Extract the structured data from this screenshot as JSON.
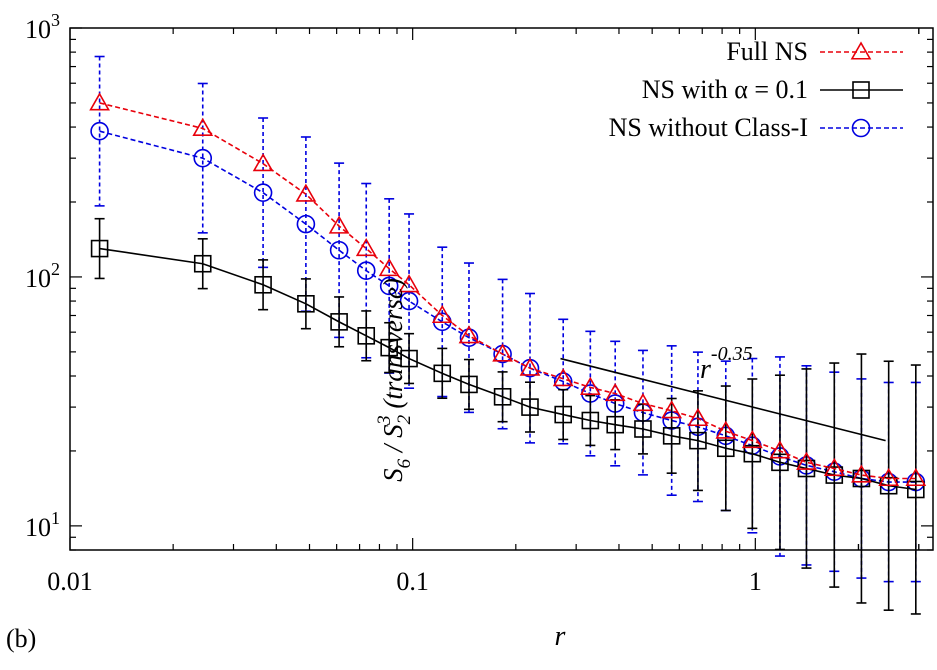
{
  "panel_label": "(b)",
  "chart_data": {
    "type": "line",
    "xlabel": "r",
    "ylabel": {
      "s6": "S",
      "s6_sub": "6",
      "slash": " / ",
      "s2": "S",
      "s2_sub": "2",
      "s2_sup": "3",
      "suffix": " (transverse)"
    },
    "xscale": "log",
    "yscale": "log",
    "xlim": [
      0.01,
      3.3
    ],
    "ylim": [
      8,
      1000
    ],
    "x_ticks": [
      {
        "value": 0.01,
        "label": "0.01"
      },
      {
        "value": 0.1,
        "label": "0.1"
      },
      {
        "value": 1,
        "label": "1"
      }
    ],
    "y_ticks": [
      {
        "value": 10,
        "base": "10",
        "exp": "1"
      },
      {
        "value": 100,
        "base": "10",
        "exp": "2"
      },
      {
        "value": 1000,
        "base": "10",
        "exp": "3"
      }
    ],
    "legend_position": "top-right",
    "series": [
      {
        "name": "Full NS",
        "color": "#e8000b",
        "marker": "triangle",
        "dash": "dashed",
        "x": [
          0.0122,
          0.0244,
          0.0366,
          0.0488,
          0.061,
          0.0732,
          0.0854,
          0.0976,
          0.122,
          0.146,
          0.183,
          0.22,
          0.275,
          0.33,
          0.39,
          0.47,
          0.57,
          0.68,
          0.82,
          0.98,
          1.18,
          1.41,
          1.7,
          2.04,
          2.45,
          2.94
        ],
        "y": [
          500,
          395,
          285,
          215,
          160,
          130,
          108,
          93,
          70,
          58,
          49,
          43,
          39,
          36,
          34,
          31,
          29,
          27,
          24,
          22,
          20,
          18,
          17,
          16,
          15.5,
          15.5
        ]
      },
      {
        "name": "NS with α = 0.1",
        "color": "#000000",
        "marker": "square",
        "dash": "solid",
        "x": [
          0.0122,
          0.0244,
          0.0366,
          0.0488,
          0.061,
          0.0732,
          0.0854,
          0.0976,
          0.122,
          0.146,
          0.183,
          0.22,
          0.275,
          0.33,
          0.39,
          0.47,
          0.57,
          0.68,
          0.82,
          0.98,
          1.18,
          1.41,
          1.7,
          2.04,
          2.45,
          2.94
        ],
        "y": [
          130,
          113,
          93,
          78,
          66,
          58,
          52,
          47,
          41,
          37,
          33,
          30,
          28,
          26.5,
          25.5,
          24.5,
          23,
          22,
          20.5,
          19.5,
          18,
          17,
          16,
          15.5,
          14.5,
          14
        ],
        "err": [
          0.12,
          0.1,
          0.1,
          0.1,
          0.1,
          0.1,
          0.1,
          0.1,
          0.1,
          0.1,
          0.1,
          0.1,
          0.1,
          0.1,
          0.1,
          0.1,
          0.15,
          0.2,
          0.25,
          0.3,
          0.35,
          0.4,
          0.45,
          0.5,
          0.5,
          0.5
        ]
      },
      {
        "name": "NS without Class-I",
        "color": "#0000e0",
        "marker": "circle",
        "dash": "dashed",
        "x": [
          0.0122,
          0.0244,
          0.0366,
          0.0488,
          0.061,
          0.0732,
          0.0854,
          0.0976,
          0.122,
          0.146,
          0.183,
          0.22,
          0.275,
          0.33,
          0.39,
          0.47,
          0.57,
          0.68,
          0.82,
          0.98,
          1.18,
          1.41,
          1.7,
          2.04,
          2.45,
          2.94
        ],
        "y": [
          385,
          300,
          218,
          163,
          128,
          106,
          92,
          80,
          66,
          57,
          49,
          43,
          38,
          34,
          31,
          28.5,
          26.5,
          25,
          23,
          21,
          19,
          17.5,
          16.5,
          15.5,
          15,
          15
        ],
        "err": [
          0.3,
          0.3,
          0.3,
          0.35,
          0.35,
          0.35,
          0.35,
          0.35,
          0.3,
          0.3,
          0.3,
          0.3,
          0.25,
          0.25,
          0.25,
          0.25,
          0.3,
          0.3,
          0.3,
          0.35,
          0.4,
          0.4,
          0.4,
          0.4,
          0.4,
          0.4
        ]
      }
    ],
    "annotation": {
      "text_base": "r",
      "text_exp": "-0.35",
      "line_x": [
        0.27,
        2.4
      ],
      "line_y": [
        47,
        22
      ]
    }
  }
}
